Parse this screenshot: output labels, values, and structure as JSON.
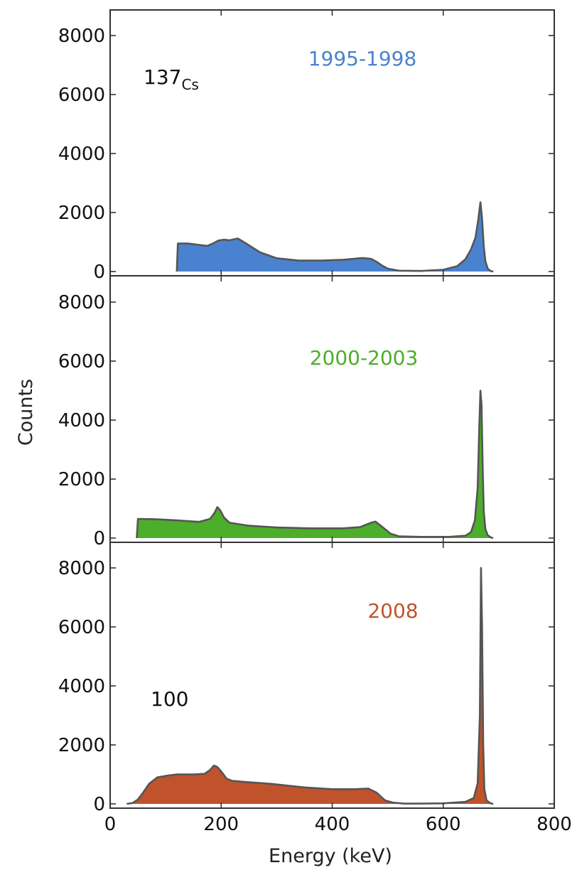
{
  "chart_data": {
    "type": "area",
    "xlabel": "Energy (keV)",
    "ylabel": "Counts",
    "xlim": [
      0,
      800
    ],
    "x_ticks": [
      "0",
      "200",
      "400",
      "600",
      "800"
    ],
    "ylim": [
      0,
      9000
    ],
    "y_ticks": [
      "0",
      "2000",
      "4000",
      "6000",
      "8000"
    ],
    "grid": false,
    "panels": [
      {
        "label": "1995-1998",
        "label_color": "#4a82cf",
        "fill_color": "#4a82cf",
        "annotation": "137",
        "annotation_sub": "Cs",
        "x": [
          120,
          122,
          140,
          160,
          175,
          185,
          195,
          205,
          215,
          230,
          245,
          270,
          300,
          340,
          380,
          420,
          455,
          470,
          480,
          490,
          500,
          520,
          560,
          600,
          625,
          640,
          650,
          658,
          663,
          667,
          670,
          673,
          676,
          680,
          685,
          690
        ],
        "values": [
          0,
          950,
          950,
          900,
          870,
          950,
          1050,
          1080,
          1060,
          1120,
          950,
          650,
          450,
          370,
          370,
          400,
          460,
          430,
          330,
          200,
          100,
          30,
          20,
          60,
          180,
          420,
          750,
          1150,
          1750,
          2350,
          1800,
          850,
          350,
          100,
          20,
          0
        ]
      },
      {
        "label": "2000-2003",
        "label_color": "#4cae2a",
        "fill_color": "#4cae2a",
        "annotation": "",
        "annotation_sub": "",
        "x": [
          48,
          50,
          80,
          120,
          160,
          180,
          188,
          193,
          198,
          205,
          215,
          250,
          300,
          360,
          420,
          450,
          470,
          478,
          490,
          505,
          520,
          560,
          610,
          640,
          650,
          657,
          662,
          665,
          667,
          669,
          671,
          673,
          676,
          680,
          686,
          690
        ],
        "values": [
          0,
          650,
          640,
          600,
          550,
          650,
          850,
          1050,
          950,
          700,
          520,
          420,
          360,
          330,
          330,
          370,
          520,
          560,
          380,
          150,
          60,
          40,
          40,
          80,
          200,
          600,
          1700,
          3800,
          5000,
          4500,
          2500,
          900,
          300,
          100,
          20,
          0
        ]
      },
      {
        "label": "2008",
        "label_color": "#c0532b",
        "fill_color": "#c0532b",
        "annotation": "100",
        "annotation_sub": "",
        "x": [
          30,
          40,
          50,
          60,
          70,
          85,
          100,
          120,
          150,
          170,
          180,
          187,
          193,
          200,
          210,
          220,
          240,
          290,
          350,
          400,
          440,
          465,
          480,
          495,
          510,
          530,
          560,
          600,
          640,
          655,
          662,
          666,
          668,
          670,
          672,
          674,
          678,
          685,
          690
        ],
        "values": [
          0,
          30,
          150,
          400,
          680,
          900,
          950,
          1000,
          1000,
          1020,
          1150,
          1300,
          1250,
          1100,
          850,
          780,
          750,
          680,
          560,
          500,
          500,
          520,
          380,
          120,
          40,
          10,
          10,
          20,
          70,
          200,
          700,
          3000,
          8000,
          6000,
          2000,
          500,
          120,
          20,
          0
        ]
      }
    ]
  }
}
